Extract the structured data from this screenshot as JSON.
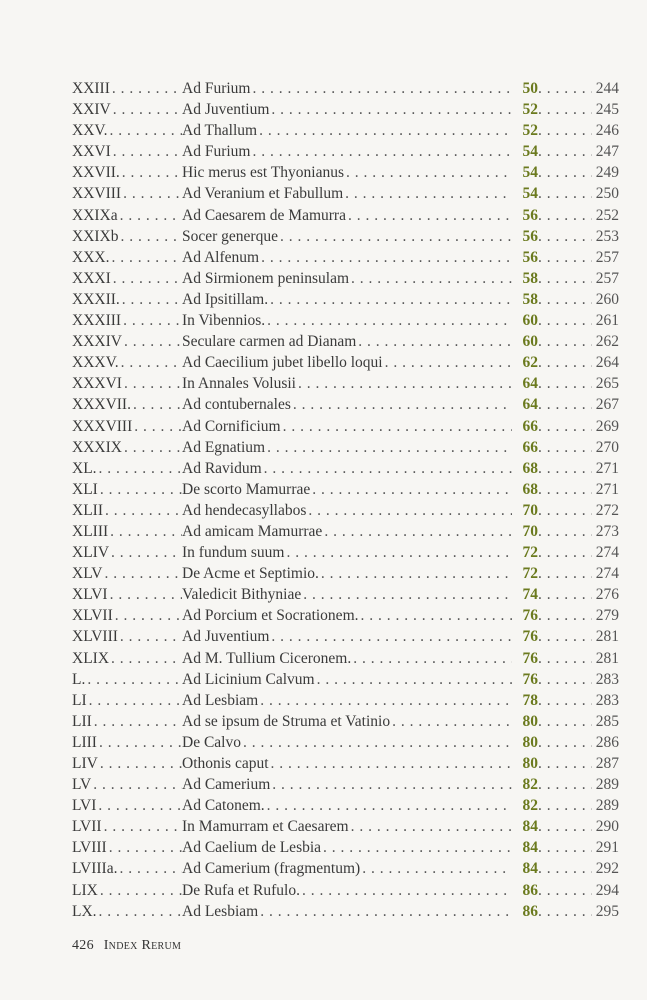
{
  "entries": [
    {
      "numeral": "XXIII",
      "title": "Ad Furium",
      "text_page": "50",
      "comm_page": "244"
    },
    {
      "numeral": "XXIV",
      "title": "Ad Juventium",
      "text_page": "52",
      "comm_page": "245"
    },
    {
      "numeral": "XXV.",
      "title": "Ad Thallum",
      "text_page": "52",
      "comm_page": "246"
    },
    {
      "numeral": "XXVI",
      "title": "Ad Furium",
      "text_page": "54",
      "comm_page": "247"
    },
    {
      "numeral": "XXVII.",
      "title": "Hic merus est Thyonianus",
      "text_page": "54",
      "comm_page": "249"
    },
    {
      "numeral": "XXVIII",
      "title": "Ad Veranium et Fabullum",
      "text_page": "54",
      "comm_page": "250"
    },
    {
      "numeral": "XXIXa",
      "title": "Ad Caesarem de Mamurra",
      "text_page": "56",
      "comm_page": "252"
    },
    {
      "numeral": "XXIXb",
      "title": "Socer generque",
      "text_page": "56",
      "comm_page": "253"
    },
    {
      "numeral": "XXX.",
      "title": "Ad Alfenum",
      "text_page": "56",
      "comm_page": "257"
    },
    {
      "numeral": "XXXI",
      "title": "Ad Sirmionem peninsulam",
      "text_page": "58",
      "comm_page": "257"
    },
    {
      "numeral": "XXXII.",
      "title": "Ad Ipsitillam.",
      "text_page": "58",
      "comm_page": "260"
    },
    {
      "numeral": "XXXIII",
      "title": "In Vibennios.",
      "text_page": "60",
      "comm_page": "261"
    },
    {
      "numeral": "XXXIV",
      "title": "Seculare carmen ad Dianam",
      "text_page": "60",
      "comm_page": "262"
    },
    {
      "numeral": "XXXV.",
      "title": "Ad Caecilium jubet libello loqui",
      "text_page": "62",
      "comm_page": "264"
    },
    {
      "numeral": "XXXVI",
      "title": "In Annales Volusii",
      "text_page": "64",
      "comm_page": "265"
    },
    {
      "numeral": "XXXVII.",
      "title": "Ad contubernales",
      "text_page": "64",
      "comm_page": "267"
    },
    {
      "numeral": "XXXVIII",
      "title": "Ad Cornificium",
      "text_page": "66",
      "comm_page": "269"
    },
    {
      "numeral": "XXXIX",
      "title": "Ad Egnatium",
      "text_page": "66",
      "comm_page": "270"
    },
    {
      "numeral": "XL.",
      "title": "Ad Ravidum",
      "text_page": "68",
      "comm_page": "271"
    },
    {
      "numeral": "XLI",
      "title": "De scorto Mamurrae",
      "text_page": "68",
      "comm_page": "271"
    },
    {
      "numeral": "XLII",
      "title": "Ad hendecasyllabos",
      "text_page": "70",
      "comm_page": "272"
    },
    {
      "numeral": "XLIII",
      "title": "Ad amicam Mamurrae",
      "text_page": "70",
      "comm_page": "273"
    },
    {
      "numeral": "XLIV",
      "title": "In fundum suum",
      "text_page": "72",
      "comm_page": "274"
    },
    {
      "numeral": "XLV",
      "title": "De Acme et Septimio.",
      "text_page": "72",
      "comm_page": "274"
    },
    {
      "numeral": "XLVI",
      "title": "Valedicit Bithyniae",
      "text_page": "74",
      "comm_page": "276"
    },
    {
      "numeral": "XLVII",
      "title": "Ad Porcium et Socrationem.",
      "text_page": "76",
      "comm_page": "279"
    },
    {
      "numeral": "XLVIII",
      "title": "Ad Juventium",
      "text_page": "76",
      "comm_page": "281"
    },
    {
      "numeral": "XLIX",
      "title": "Ad M. Tullium Ciceronem.",
      "text_page": "76",
      "comm_page": "281"
    },
    {
      "numeral": "L.",
      "title": "Ad Licinium Calvum",
      "text_page": "76",
      "comm_page": "283"
    },
    {
      "numeral": "LI",
      "title": "Ad Lesbiam",
      "text_page": "78",
      "comm_page": "283"
    },
    {
      "numeral": "LII",
      "title": "Ad se ipsum de Struma et Vatinio",
      "text_page": "80",
      "comm_page": "285"
    },
    {
      "numeral": "LIII",
      "title": "De Calvo",
      "text_page": "80",
      "comm_page": "286"
    },
    {
      "numeral": "LIV",
      "title": "Othonis caput",
      "text_page": "80",
      "comm_page": "287"
    },
    {
      "numeral": "LV",
      "title": "Ad Camerium",
      "text_page": "82",
      "comm_page": "289"
    },
    {
      "numeral": "LVI",
      "title": "Ad Catonem.",
      "text_page": "82",
      "comm_page": "289"
    },
    {
      "numeral": "LVII",
      "title": "In Mamurram et Caesarem",
      "text_page": "84",
      "comm_page": "290"
    },
    {
      "numeral": "LVIII",
      "title": "Ad Caelium de Lesbia",
      "text_page": "84",
      "comm_page": "291"
    },
    {
      "numeral": "LVIIIa.",
      "title": "Ad Camerium (fragmentum)",
      "text_page": "84",
      "comm_page": "292"
    },
    {
      "numeral": "LIX",
      "title": "De Rufa et Rufulo.",
      "text_page": "86",
      "comm_page": "294"
    },
    {
      "numeral": "LX.",
      "title": "Ad Lesbiam",
      "text_page": "86",
      "comm_page": "295"
    }
  ],
  "footer": {
    "page_number": "426",
    "running_title": "Index Rerum"
  },
  "colors": {
    "text_page_accent": "#6b7a1e",
    "text": "#3a3a3a",
    "paper": "#f7f6f3"
  }
}
